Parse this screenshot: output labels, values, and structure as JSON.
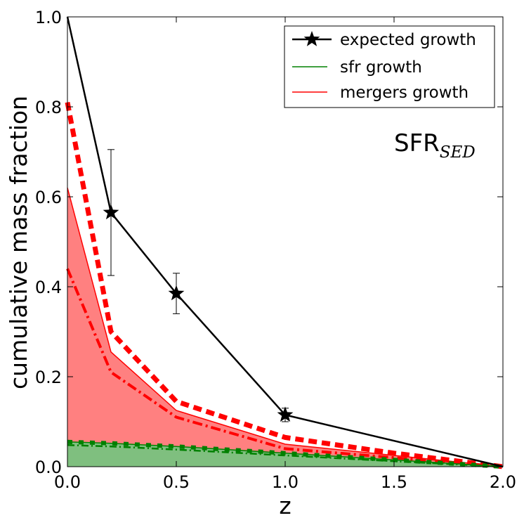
{
  "chart_data": {
    "type": "line",
    "xlabel": "z",
    "ylabel": "cumulative mass fraction",
    "xlim": [
      0.0,
      2.0
    ],
    "ylim": [
      0.0,
      1.0
    ],
    "xticks": [
      "0.0",
      "0.5",
      "1.0",
      "1.5",
      "2.0"
    ],
    "yticks": [
      "0.0",
      "0.2",
      "0.4",
      "0.6",
      "0.8",
      "1.0"
    ],
    "annotation": {
      "main": "SFR",
      "sub": "SED"
    },
    "legend": {
      "position": "top-right",
      "entries": [
        "expected growth",
        "sfr growth",
        "mergers growth"
      ]
    },
    "expected_growth": {
      "name": "expected growth",
      "color": "#000000",
      "x": [
        0.0,
        0.2,
        0.5,
        1.0,
        2.0
      ],
      "y": [
        1.0,
        0.565,
        0.385,
        0.115,
        0.0
      ],
      "yerr": [
        0.0,
        0.14,
        0.045,
        0.015,
        0.0
      ]
    },
    "sfr_growth": {
      "name": "sfr growth",
      "color": "#008000",
      "fill_color": "#7fbf7f",
      "x": [
        0.0,
        0.2,
        0.5,
        1.0,
        1.5,
        2.0
      ],
      "upper": [
        0.055,
        0.052,
        0.045,
        0.03,
        0.015,
        0.0
      ],
      "mid": [
        0.048,
        0.045,
        0.038,
        0.025,
        0.012,
        0.0
      ]
    },
    "mergers_growth": {
      "name": "mergers growth",
      "color": "#ff0000",
      "fill_color": "#ff8080",
      "x": [
        0.0,
        0.2,
        0.5,
        1.0,
        1.5,
        2.0
      ],
      "upper": [
        0.81,
        0.3,
        0.145,
        0.065,
        0.03,
        0.0
      ],
      "fill_top": [
        0.62,
        0.255,
        0.125,
        0.05,
        0.025,
        0.0
      ],
      "mid": [
        0.44,
        0.21,
        0.11,
        0.04,
        0.02,
        0.0
      ]
    }
  }
}
